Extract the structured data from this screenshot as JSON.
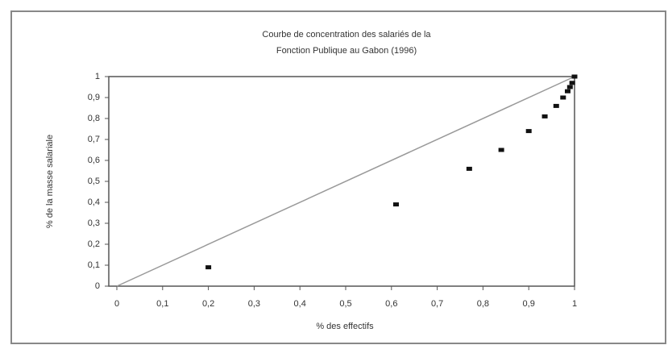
{
  "chart_data": {
    "type": "scatter",
    "title": [
      "Courbe de concentration des salariés de la",
      "Fonction Publique au Gabon (1996)"
    ],
    "x_label": "% des effectifs",
    "y_label": "% de la masse salariale",
    "series": [
      {
        "color": "#111111",
        "x": [
          0.2,
          0.61,
          0.77,
          0.84,
          0.9,
          0.935,
          0.96,
          0.975,
          0.985,
          0.99,
          0.995,
          1
        ],
        "values": [
          0.09,
          0.39,
          0.56,
          0.65,
          0.74,
          0.81,
          0.86,
          0.9,
          0.93,
          0.95,
          0.97,
          1
        ]
      }
    ],
    "reference_line": {
      "color": "#999999",
      "x": [
        0,
        1
      ],
      "values": [
        0,
        1
      ]
    },
    "xlim": [
      0,
      1
    ],
    "ylim": [
      0,
      1
    ],
    "xticks": [
      0,
      {
        "value": 0.1,
        "label": "0,1"
      },
      {
        "value": 0.2,
        "label": "0,2"
      },
      {
        "value": 0.3,
        "label": "0,3"
      },
      {
        "value": 0.4,
        "label": "0,4"
      },
      {
        "value": 0.5,
        "label": "0,5"
      },
      {
        "value": 0.6,
        "label": "0,6"
      },
      {
        "value": 0.7,
        "label": "0,7"
      },
      {
        "value": 0.8,
        "label": "0,8"
      },
      {
        "value": 0.9,
        "label": "0,9"
      },
      1
    ],
    "yticks": [
      0,
      {
        "value": 0.1,
        "label": "0,1"
      },
      {
        "value": 0.2,
        "label": "0,2"
      },
      {
        "value": 0.3,
        "label": "0,3"
      },
      {
        "value": 0.4,
        "label": "0,4"
      },
      {
        "value": 0.5,
        "label": "0,5"
      },
      {
        "value": 0.6,
        "label": "0,6"
      },
      {
        "value": 0.7,
        "label": "0,7"
      },
      {
        "value": 0.8,
        "label": "0,8"
      },
      {
        "value": 0.9,
        "label": "0,9"
      },
      1
    ],
    "grid": false
  }
}
